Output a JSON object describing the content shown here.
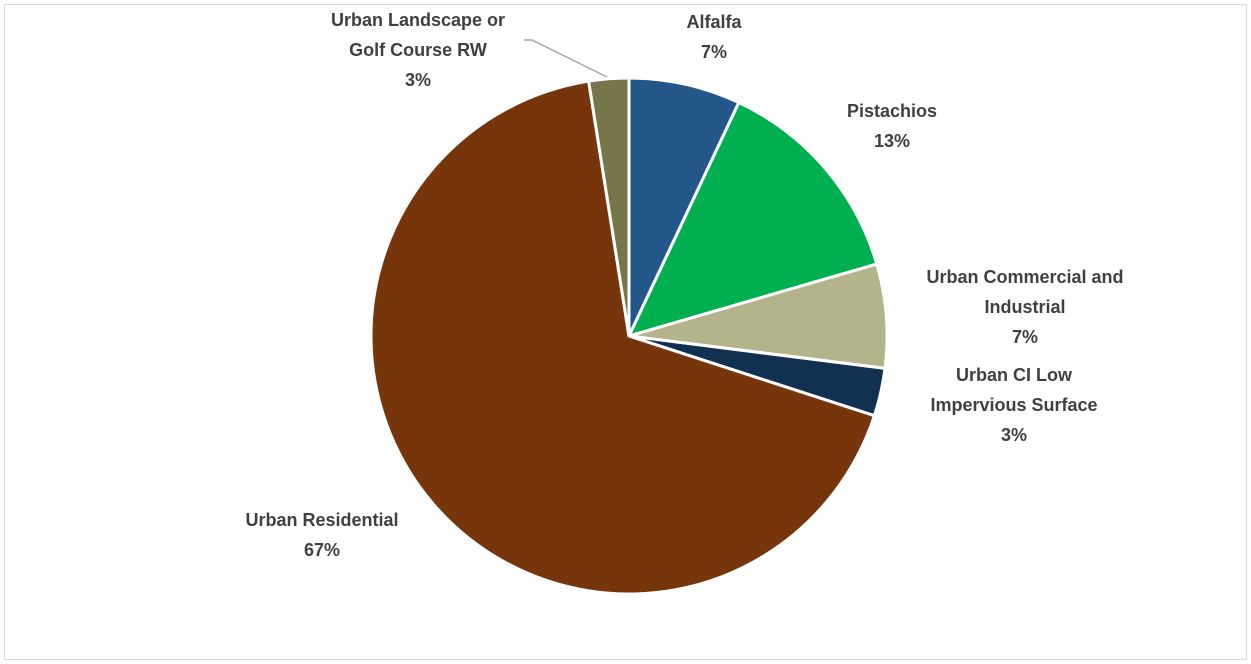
{
  "chart_data": {
    "type": "pie",
    "title": "",
    "slices": [
      {
        "label": [
          "Alfalfa"
        ],
        "percent_label": "7%",
        "value": 7,
        "color": "#235789"
      },
      {
        "label": [
          "Pistachios"
        ],
        "percent_label": "13%",
        "value": 13.5,
        "color": "#00b050"
      },
      {
        "label": [
          "Urban Commercial and",
          "Industrial"
        ],
        "percent_label": "7%",
        "value": 6.5,
        "color": "#b3b38c"
      },
      {
        "label": [
          "Urban CI Low",
          "Impervious Surface"
        ],
        "percent_label": "3%",
        "value": 3,
        "color": "#12304f"
      },
      {
        "label": [
          "Urban Residential"
        ],
        "percent_label": "67%",
        "value": 67.5,
        "color": "#76350b"
      },
      {
        "label": [
          "Urban Landscape or",
          "Golf Course RW"
        ],
        "percent_label": "3%",
        "value": 2.5,
        "color": "#77764a"
      }
    ]
  }
}
